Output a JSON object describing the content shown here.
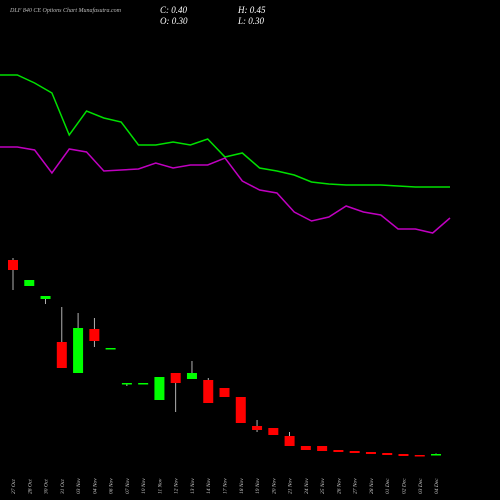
{
  "chart_data": {
    "type": "candlestick",
    "title": "DLF 840 CE Options Chart Munafasutra.com",
    "info": {
      "close": "C: 0.40",
      "high": "H: 0.45",
      "open": "O: 0.30",
      "low": "L: 0.30"
    },
    "categories": [
      "27 Oct",
      "28 Oct",
      "30 Oct",
      "31 Oct",
      "03 Nov",
      "04 Nov",
      "06 Nov",
      "07 Nov",
      "10 Nov",
      "11 Nov",
      "12 Nov",
      "13 Nov",
      "14 Nov",
      "17 Nov",
      "18 Nov",
      "19 Nov",
      "20 Nov",
      "21 Nov",
      "24 Nov",
      "25 Nov",
      "26 Nov",
      "27 Nov",
      "28 Nov",
      "01 Dec",
      "02 Dec",
      "03 Dec",
      "04 Dec"
    ],
    "open": [
      19.8,
      17.2,
      15.9,
      11.6,
      8.5,
      12.9,
      11.0,
      7.5,
      7.5,
      5.8,
      8.5,
      7.9,
      7.8,
      7.0,
      6.1,
      3.2,
      3.0,
      2.2,
      1.2,
      1.2,
      0.8,
      0.7,
      0.6,
      0.5,
      0.4,
      0.3,
      0.3
    ],
    "high": [
      20.0,
      17.8,
      16.2,
      15.1,
      14.5,
      14.0,
      11.0,
      7.5,
      7.5,
      8.1,
      8.5,
      9.7,
      8.0,
      7.0,
      6.1,
      3.8,
      3.0,
      2.6,
      1.2,
      1.2,
      0.8,
      0.7,
      0.6,
      0.5,
      0.4,
      0.3,
      0.45
    ],
    "low": [
      16.8,
      17.2,
      15.4,
      9.0,
      8.5,
      11.1,
      11.0,
      7.2,
      7.5,
      5.8,
      4.6,
      7.9,
      5.5,
      6.1,
      3.5,
      2.6,
      2.3,
      1.2,
      0.8,
      0.7,
      0.6,
      0.5,
      0.4,
      0.3,
      0.2,
      0.2,
      0.3
    ],
    "close": [
      18.8,
      17.8,
      16.2,
      9.0,
      13.0,
      11.7,
      11.0,
      7.5,
      7.5,
      8.1,
      7.5,
      8.5,
      5.5,
      6.1,
      3.5,
      2.8,
      2.3,
      1.2,
      0.8,
      0.7,
      0.6,
      0.5,
      0.4,
      0.3,
      0.2,
      0.2,
      0.4
    ],
    "up_color": "#00ff00",
    "down_color": "#ff0000",
    "ylim": [
      0,
      45.8
    ],
    "lines": [
      {
        "color": "#00e000",
        "values": [
          425,
          425,
          417,
          407,
          365,
          389,
          382,
          378,
          355,
          355,
          358,
          355,
          361,
          343,
          347,
          332,
          329,
          325,
          318,
          316,
          315,
          315,
          315,
          314,
          313,
          313,
          313
        ]
      },
      {
        "color": "#c000c0",
        "values": [
          353,
          353,
          350,
          327,
          351,
          348,
          329,
          330,
          331,
          337,
          332,
          335,
          335,
          342,
          319,
          310,
          307,
          288,
          279,
          283,
          294,
          288,
          285,
          271,
          271,
          267,
          282
        ]
      }
    ],
    "y2lim": [
      0,
      500
    ]
  }
}
